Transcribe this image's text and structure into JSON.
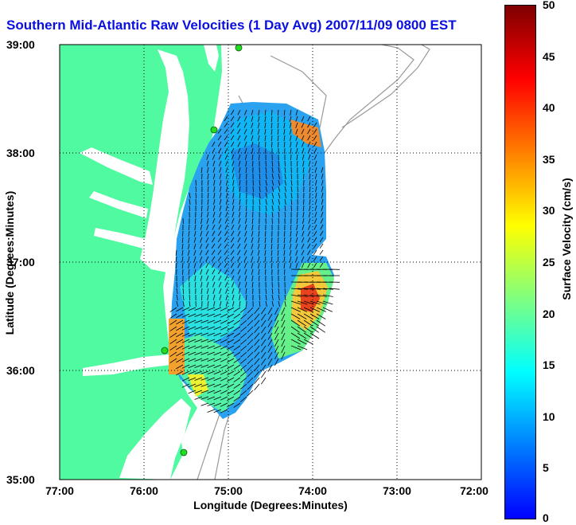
{
  "title": "Southern Mid-Atlantic Raw Velocities (1 Day Avg) 2007/11/09 0800 EST",
  "axes": {
    "xlabel": "Longitude (Degrees:Minutes)",
    "ylabel": "Latitude (Degrees:Minutes)",
    "xticks": [
      "77:00",
      "76:00",
      "75:00",
      "74:00",
      "73:00",
      "72:00"
    ],
    "yticks": [
      "39:00",
      "38:00",
      "37:00",
      "36:00",
      "35:00"
    ]
  },
  "colorbar": {
    "label": "Surface Velocity (cm/s)",
    "ticks": [
      "50",
      "45",
      "40",
      "35",
      "30",
      "25",
      "20",
      "15",
      "10",
      "5",
      "0"
    ],
    "range": [
      0,
      50
    ],
    "colormap": "jet"
  },
  "colors": {
    "land": "#4ffaa0",
    "title": "#0a10e0",
    "station": "#22dd22",
    "bathymetry": "#999999"
  },
  "extent": {
    "lon": [
      -77,
      -72
    ],
    "lat": [
      35,
      39
    ]
  }
}
